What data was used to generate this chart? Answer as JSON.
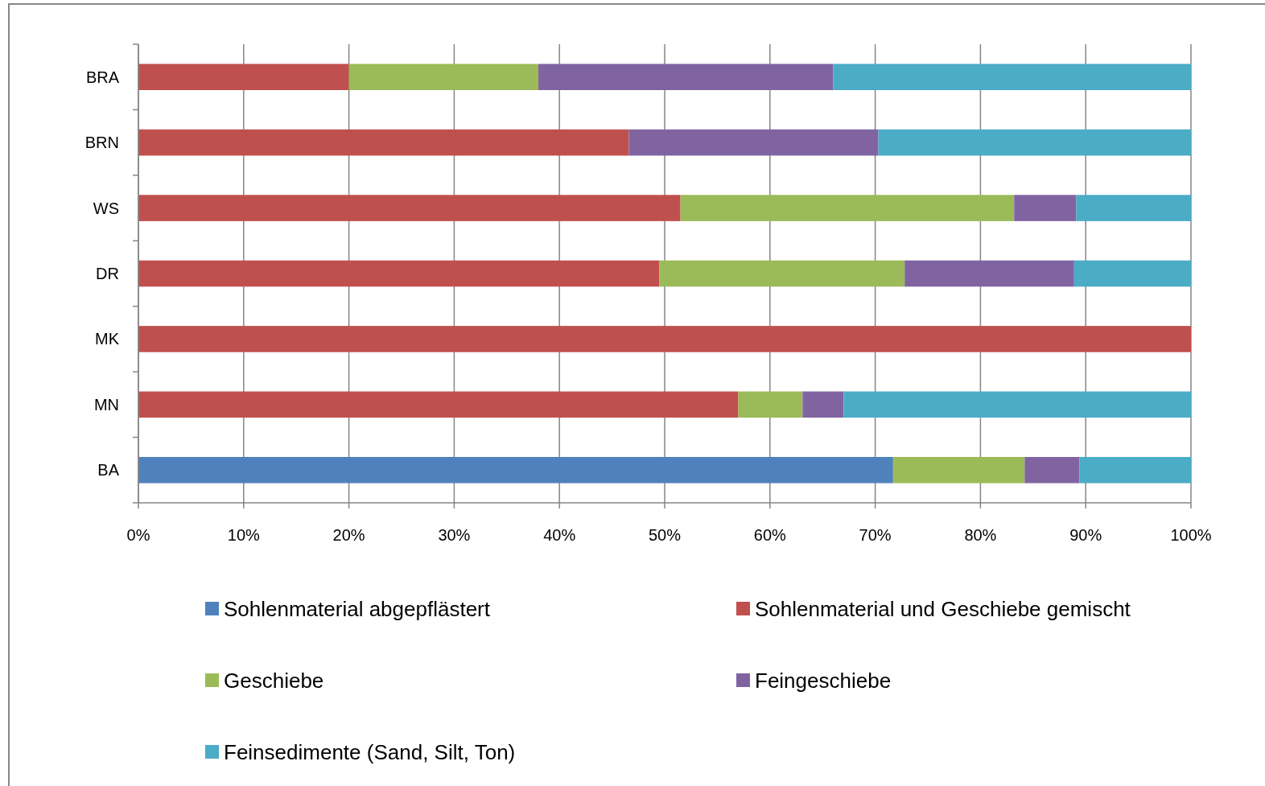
{
  "chart_data": {
    "type": "bar",
    "orientation": "horizontal",
    "stacked": true,
    "categories": [
      "BRA",
      "BRN",
      "WS",
      "DR",
      "MK",
      "MN",
      "BA"
    ],
    "series": [
      {
        "name": "Sohlenmaterial abgepflästert",
        "color": "#4f81bd",
        "values": [
          null,
          null,
          null,
          null,
          null,
          null,
          71.7
        ]
      },
      {
        "name": "Sohlenmaterial und Geschiebe gemischt",
        "color": "#c0504d",
        "values": [
          20,
          46.6,
          51.5,
          49.5,
          100,
          57,
          null
        ]
      },
      {
        "name": "Geschiebe",
        "color": "#9bbb59",
        "values": [
          18,
          null,
          31.7,
          23.3,
          null,
          6.1,
          12.5
        ]
      },
      {
        "name": "Feingeschiebe",
        "color": "#8064a2",
        "values": [
          28,
          23.7,
          5.9,
          16.1,
          null,
          3.9,
          5.2
        ]
      },
      {
        "name": "Feinsedimente (Sand, Silt, Ton)",
        "color": "#4bacc6",
        "values": [
          34,
          29.7,
          10.9,
          11.1,
          null,
          33,
          10.6
        ]
      }
    ],
    "xlim": [
      0,
      100
    ],
    "xticks": [
      {
        "value": 0,
        "label": "0%"
      },
      {
        "value": 10,
        "label": "10%"
      },
      {
        "value": 20,
        "label": "20%"
      },
      {
        "value": 30,
        "label": "30%"
      },
      {
        "value": 40,
        "label": "40%"
      },
      {
        "value": 50,
        "label": "50%"
      },
      {
        "value": 60,
        "label": "60%"
      },
      {
        "value": 70,
        "label": "70%"
      },
      {
        "value": 80,
        "label": "80%"
      },
      {
        "value": 90,
        "label": "90%"
      },
      {
        "value": 100,
        "label": "100%"
      }
    ],
    "grid": "x",
    "legend": "bottom"
  }
}
